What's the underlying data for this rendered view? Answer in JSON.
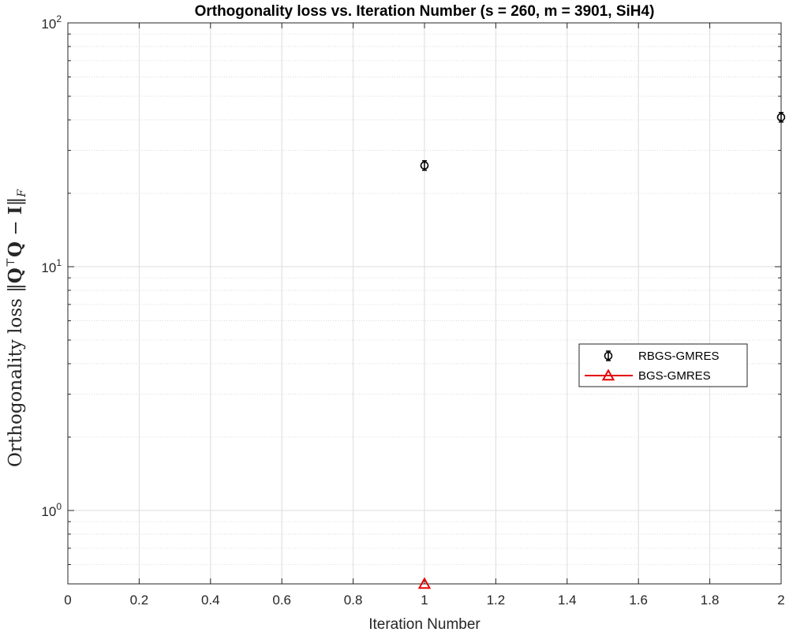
{
  "chart_data": {
    "type": "scatter",
    "title": "Orthogonality loss vs. Iteration Number (s = 260, m = 3901, SiH4)",
    "xlabel": "Iteration Number",
    "ylabel_parts": {
      "prefix": "Orthogonality loss ",
      "norm_left": "‖",
      "q1": "Q",
      "transpose": "⊤",
      "q2": "Q",
      "minus": " − ",
      "identity": "I",
      "norm_right": "‖",
      "subscript": "F"
    },
    "xlim": [
      0,
      2
    ],
    "ylim": [
      0.5,
      100
    ],
    "yscale": "log",
    "grid": true,
    "x_ticks": [
      0,
      0.2,
      0.4,
      0.6,
      0.8,
      1,
      1.2,
      1.4,
      1.6,
      1.8,
      2
    ],
    "x_tick_labels": [
      "0",
      "0.2",
      "0.4",
      "0.6",
      "0.8",
      "1",
      "1.2",
      "1.4",
      "1.6",
      "1.8",
      "2"
    ],
    "y_ticks": [
      {
        "value": 1,
        "base": "10",
        "exp": "0"
      },
      {
        "value": 10,
        "base": "10",
        "exp": "1"
      },
      {
        "value": 100,
        "base": "10",
        "exp": "2"
      }
    ],
    "legend_position": "right-middle",
    "series": [
      {
        "name": "RBGS-GMRES",
        "color": "#000000",
        "marker": "circle",
        "errorbar": true,
        "x": [
          1,
          2
        ],
        "y": [
          26,
          41
        ]
      },
      {
        "name": "BGS-GMRES",
        "color": "#e60000",
        "marker": "triangle",
        "errorbar": false,
        "x": [
          1
        ],
        "y": [
          0.5
        ]
      }
    ]
  }
}
